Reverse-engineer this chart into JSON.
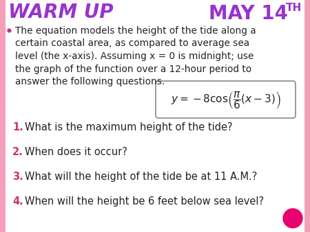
{
  "bg_color": "#ffffff",
  "title_left": "WARM UP",
  "title_right": "MAY 14",
  "title_right_super": "TH",
  "title_color": "#9933cc",
  "bullet_lines": [
    "The equation models the height of the tide along a",
    "certain coastal area, as compared to average sea",
    "level (the x-axis). Assuming x = 0 is midnight; use",
    "the graph of the function over a 12-hour period to",
    "answer the following questions."
  ],
  "equation_box_color": "#ffffff",
  "equation_box_border": "#888888",
  "questions": [
    "What is the maximum height of the tide?",
    "When does it occur?",
    "What will the height of the tide be at 11 A.M.?",
    "When will the height be 6 feet below sea level?"
  ],
  "question_color": "#222222",
  "number_color": "#cc3366",
  "bullet_color": "#cc3366",
  "circle_color": "#e8006e",
  "font_color_main": "#222222",
  "left_stripe_color": "#f5a0b8",
  "right_stripe_color": "#f5a0b8",
  "title_fontsize": 20,
  "body_fontsize": 9.8,
  "q_fontsize": 10.5
}
